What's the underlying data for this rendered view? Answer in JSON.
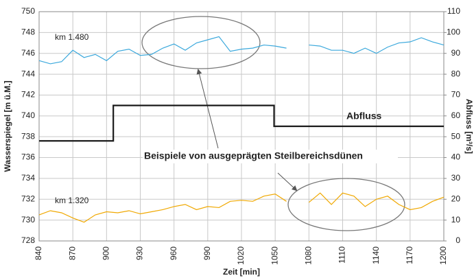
{
  "chart_data": {
    "type": "line",
    "xlabel": "Zeit [min]",
    "ylabel": "Wasserspiegel [m ü.M.]",
    "y2label": "Abfluss [m³/s]",
    "x": [
      840,
      850,
      860,
      870,
      880,
      890,
      900,
      910,
      920,
      930,
      940,
      950,
      960,
      970,
      980,
      990,
      1000,
      1010,
      1020,
      1030,
      1040,
      1050,
      1060,
      1070,
      1080,
      1090,
      1100,
      1110,
      1120,
      1130,
      1140,
      1150,
      1160,
      1170,
      1180,
      1190,
      1200
    ],
    "series": [
      {
        "name": "km 1.480",
        "color": "#3aa8dc",
        "values": [
          745.3,
          745.0,
          745.2,
          746.3,
          745.6,
          745.9,
          745.3,
          746.2,
          746.4,
          745.8,
          745.9,
          746.5,
          746.9,
          746.3,
          747.0,
          747.3,
          747.6,
          746.2,
          746.4,
          746.5,
          746.8,
          746.7,
          746.5,
          null,
          746.8,
          746.7,
          746.3,
          746.3,
          746.0,
          746.5,
          746.0,
          746.6,
          747.0,
          747.1,
          747.5,
          747.1,
          746.8
        ]
      },
      {
        "name": "km 1.320",
        "color": "#f0a800",
        "values": [
          730.5,
          730.9,
          730.7,
          730.2,
          729.8,
          730.5,
          730.8,
          730.7,
          730.9,
          730.6,
          730.8,
          731.0,
          731.3,
          731.5,
          731.0,
          731.3,
          731.2,
          731.8,
          731.9,
          731.8,
          732.3,
          732.5,
          731.8,
          null,
          731.7,
          732.6,
          731.5,
          732.6,
          732.3,
          731.3,
          732.0,
          732.3,
          731.5,
          731.0,
          731.2,
          731.8,
          732.2
        ]
      },
      {
        "name": "Abfluss",
        "color": "#1a1a1a",
        "axis": "y2",
        "x": [
          840,
          906,
          906,
          1049,
          1049,
          1200
        ],
        "values": [
          48,
          48,
          65,
          65,
          55,
          55
        ]
      }
    ],
    "annotations": [
      "Beispiele von ausgeprägten Steilbereichsdünen"
    ],
    "xlim": [
      840,
      1200
    ],
    "xticks": [
      840,
      870,
      900,
      930,
      960,
      990,
      1020,
      1050,
      1080,
      1110,
      1140,
      1170,
      1200
    ],
    "ylim": [
      728,
      750
    ],
    "yticks": [
      728,
      730,
      732,
      734,
      736,
      738,
      740,
      742,
      744,
      746,
      748,
      750
    ],
    "y2lim": [
      0,
      110
    ],
    "y2ticks": [
      0,
      10,
      20,
      30,
      40,
      50,
      60,
      70,
      80,
      90,
      100,
      110
    ],
    "grid": true
  }
}
